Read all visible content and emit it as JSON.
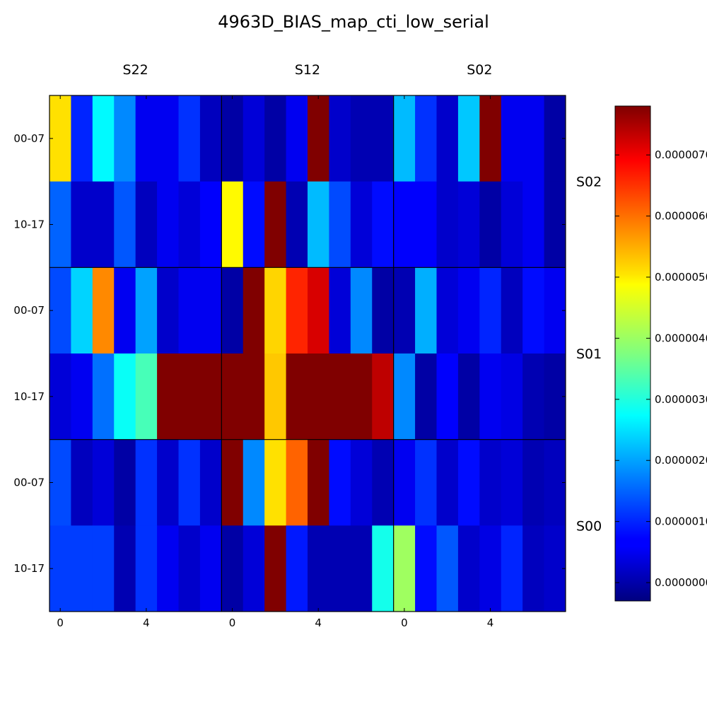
{
  "chart_data": {
    "type": "heatmap",
    "title": "4963D_BIAS_map_cti_low_serial",
    "column_groups": [
      "S22",
      "S12",
      "S02"
    ],
    "row_groups": [
      "S02",
      "S01",
      "S00"
    ],
    "row_labels": [
      "00-07",
      "10-17"
    ],
    "x_ticks": [
      "0",
      "4"
    ],
    "colorbar_ticks": [
      {
        "label": "0.0000000",
        "value": 0.0
      },
      {
        "label": "0.0000010",
        "value": 1.0
      },
      {
        "label": "0.0000020",
        "value": 2.0
      },
      {
        "label": "0.0000030",
        "value": 3.0
      },
      {
        "label": "0.0000040",
        "value": 4.0
      },
      {
        "label": "0.0000050",
        "value": 5.0
      },
      {
        "label": "0.0000060",
        "value": 6.0
      },
      {
        "label": "0.0000070",
        "value": 7.0
      }
    ],
    "value_unit_note": "cell values in units of 1e-6",
    "vmin": -0.3,
    "vmax": 7.8,
    "colormap": "jet",
    "grid": [
      [
        5.0,
        1.0,
        2.7,
        1.8,
        0.6,
        0.6,
        1.1,
        0.2,
        0.0,
        0.4,
        0.0,
        0.6,
        7.8,
        0.3,
        0.1,
        0.1,
        2.2,
        1.1,
        0.3,
        2.3,
        7.8,
        0.6,
        0.6,
        0.0
      ],
      [
        1.5,
        0.3,
        0.3,
        1.4,
        0.2,
        0.6,
        0.4,
        0.7,
        4.8,
        0.8,
        7.8,
        0.1,
        2.2,
        1.3,
        0.4,
        0.8,
        0.7,
        0.7,
        0.3,
        0.4,
        0.0,
        0.4,
        0.6,
        0.0
      ],
      [
        1.3,
        2.4,
        5.7,
        0.6,
        2.0,
        0.3,
        0.6,
        0.6,
        0.0,
        7.8,
        5.1,
        6.5,
        7.1,
        0.4,
        1.8,
        0.0,
        0.1,
        2.1,
        0.4,
        0.6,
        1.0,
        0.2,
        0.8,
        0.6
      ],
      [
        0.4,
        0.6,
        1.6,
        2.8,
        3.3,
        7.8,
        7.8,
        7.8,
        7.8,
        7.8,
        5.2,
        7.8,
        7.8,
        7.8,
        7.8,
        7.3,
        1.8,
        0.0,
        0.7,
        0.0,
        0.6,
        0.5,
        0.1,
        0.0
      ],
      [
        1.3,
        0.2,
        0.4,
        0.0,
        1.1,
        0.3,
        1.1,
        0.3,
        7.8,
        1.8,
        5.0,
        6.0,
        7.8,
        0.8,
        0.4,
        0.1,
        0.6,
        1.1,
        0.3,
        0.8,
        0.3,
        0.4,
        0.1,
        0.2
      ],
      [
        1.2,
        1.2,
        1.2,
        0.1,
        1.1,
        0.6,
        0.3,
        0.6,
        0.0,
        0.4,
        7.8,
        0.9,
        0.1,
        0.1,
        0.1,
        2.9,
        4.0,
        0.8,
        1.4,
        0.3,
        0.5,
        1.0,
        0.2,
        0.3
      ]
    ]
  }
}
